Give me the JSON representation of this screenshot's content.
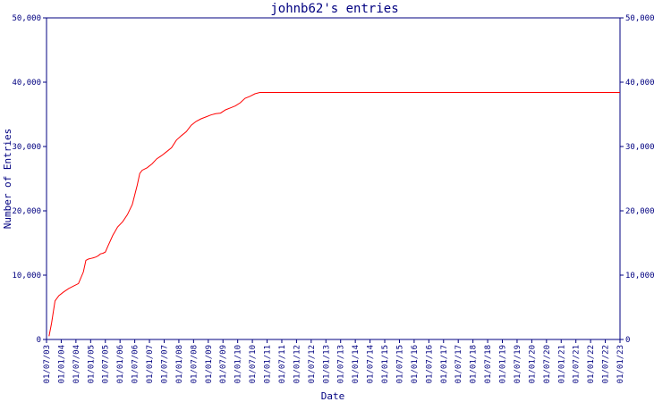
{
  "chart_data": {
    "type": "line",
    "title": "johnb62's entries",
    "xlabel": "Date",
    "ylabel": "Number of Entries",
    "ylim": [
      0,
      50000
    ],
    "yticks": [
      0,
      10000,
      20000,
      30000,
      40000,
      50000
    ],
    "ytick_labels": [
      "0",
      "10,000",
      "20,000",
      "30,000",
      "40,000",
      "50,000"
    ],
    "xlim": [
      "2003-07-01",
      "2023-01-01"
    ],
    "xtick_labels": [
      "01/07/03",
      "01/01/04",
      "01/07/04",
      "01/01/05",
      "01/07/05",
      "01/01/06",
      "01/07/06",
      "01/01/07",
      "01/07/07",
      "01/01/08",
      "01/07/08",
      "01/01/09",
      "01/07/09",
      "01/01/10",
      "01/07/10",
      "01/01/11",
      "01/07/11",
      "01/01/12",
      "01/07/12",
      "01/01/13",
      "01/07/13",
      "01/01/14",
      "01/07/14",
      "01/01/15",
      "01/07/15",
      "01/01/16",
      "01/07/16",
      "01/01/17",
      "01/07/17",
      "01/01/18",
      "01/07/18",
      "01/01/19",
      "01/07/19",
      "01/01/20",
      "01/07/20",
      "01/01/21",
      "01/07/21",
      "01/01/22",
      "01/07/22",
      "01/01/23"
    ],
    "grid": false,
    "series_color": "#ff0000",
    "axis_color": "#000080",
    "series": [
      {
        "x": [
          "2003-08-01",
          "2003-09-01",
          "2003-10-15",
          "2003-12-01",
          "2004-02-01",
          "2004-04-01",
          "2004-06-01",
          "2004-08-01",
          "2004-10-01",
          "2004-11-01",
          "2004-12-01",
          "2005-01-01",
          "2005-02-01",
          "2005-03-01",
          "2005-04-01",
          "2005-05-01",
          "2005-06-01",
          "2005-07-01",
          "2005-08-01",
          "2005-10-01",
          "2005-12-01",
          "2006-02-01",
          "2006-04-01",
          "2006-06-01",
          "2006-08-01",
          "2006-09-01",
          "2006-10-01",
          "2006-12-01",
          "2007-02-01",
          "2007-04-01",
          "2007-06-01",
          "2007-08-01",
          "2007-10-01",
          "2007-12-01",
          "2008-02-01",
          "2008-04-01",
          "2008-06-01",
          "2008-08-01",
          "2008-10-01",
          "2008-12-01",
          "2009-02-01",
          "2009-04-01",
          "2009-06-01",
          "2009-08-01",
          "2009-10-01",
          "2009-12-01",
          "2010-02-01",
          "2010-04-01",
          "2010-06-01",
          "2010-08-01",
          "2010-10-01",
          "2010-12-01",
          "2011-02-01",
          "2011-04-01",
          "2011-06-01",
          "2023-01-01"
        ],
        "y": [
          500,
          2500,
          6000,
          6800,
          7400,
          7900,
          8300,
          8700,
          10500,
          12300,
          12500,
          12600,
          12700,
          12800,
          13000,
          13300,
          13400,
          13600,
          14500,
          16200,
          17500,
          18300,
          19400,
          21000,
          24000,
          25800,
          26300,
          26700,
          27300,
          28100,
          28600,
          29200,
          29800,
          31000,
          31700,
          32300,
          33300,
          33900,
          34300,
          34600,
          34900,
          35100,
          35200,
          35700,
          36000,
          36300,
          36800,
          37500,
          37800,
          38200,
          38400,
          38400,
          38400,
          38400,
          38400,
          38400
        ]
      }
    ]
  }
}
